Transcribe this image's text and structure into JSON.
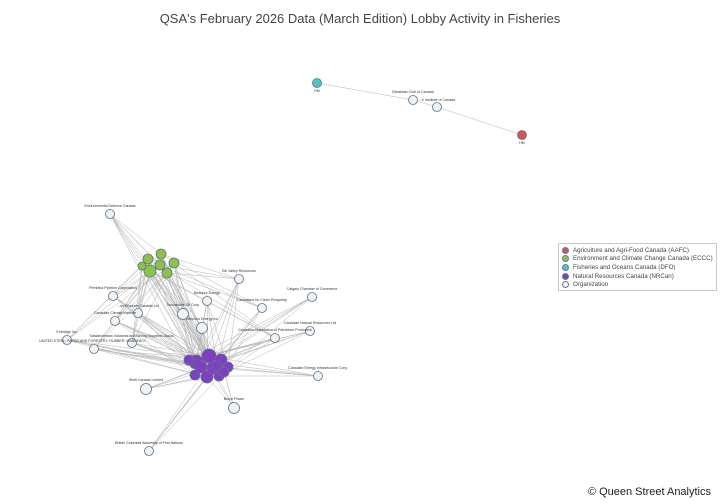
{
  "title": "QSA's February 2026 Data (March Edition) Lobby Activity in Fisheries",
  "credit": "© Queen Street Analytics",
  "colors": {
    "AAFC": "#d9534f",
    "ECCC": "#8bc34a",
    "DFO": "#4ec3c9",
    "NRCan": "#7e3fc4",
    "Organization": "#eef3f8",
    "stroke": "#5f7180",
    "edge": "#b5b5b5"
  },
  "legend": [
    {
      "key": "AAFC",
      "label": "Agriculture and Agri-Food Canada (AAFC)"
    },
    {
      "key": "ECCC",
      "label": "Environment and Climate Change Canada (ECCC)"
    },
    {
      "key": "DFO",
      "label": "Fisheries and Oceans Canada (DFO)"
    },
    {
      "key": "NRCan",
      "label": "Natural Resources Canada (NRCan)"
    },
    {
      "key": "Organization",
      "label": "Organization"
    }
  ],
  "nodes": [
    {
      "id": "dfo",
      "type": "DFO",
      "label": "HM"
    },
    {
      "id": "bcc",
      "type": "Organization",
      "label": "Breakfast Club of Canada"
    },
    {
      "id": "inst",
      "type": "Organization",
      "label": "...e Institute of Canada"
    },
    {
      "id": "aafc",
      "type": "AAFC",
      "label": "HM"
    },
    {
      "id": "edc",
      "type": "Organization",
      "label": "Environmental Defence Canada"
    },
    {
      "id": "elk",
      "type": "Organization",
      "label": "Elk Valley Resources"
    },
    {
      "id": "pembina",
      "type": "Organization",
      "label": "Pembina Pipeline Corporation"
    },
    {
      "id": "calgary",
      "type": "Organization",
      "label": "Calgary Chamber of Commerce"
    },
    {
      "id": "enbridge_gas",
      "type": "Organization",
      "label": "Beaupré Energy"
    },
    {
      "id": "forest",
      "type": "Organization",
      "label": "...ss Products Canada Ltd"
    },
    {
      "id": "touchstone",
      "type": "Organization",
      "label": "Touchstone Oil Corp."
    },
    {
      "id": "clean",
      "type": "Organization",
      "label": "Canadians for Clean Prosperity"
    },
    {
      "id": "cci",
      "type": "Organization",
      "label": "Canadian Climate Institute"
    },
    {
      "id": "cenovus",
      "type": "Organization",
      "label": "Cenovus Energy Inc"
    },
    {
      "id": "cnrl",
      "type": "Organization",
      "label": "Canadian Natural Resources Ltd"
    },
    {
      "id": "enbridge",
      "type": "Organization",
      "label": "Enbridge Inc."
    },
    {
      "id": "sima",
      "type": "Organization",
      "label": "Saskatchewan Industrial and Mining Suppliers Assoc."
    },
    {
      "id": "steel",
      "type": "Organization",
      "label": "UNITED STEEL, PAPER AND FORESTRY, RUBBER, MANUFACT..."
    },
    {
      "id": "capp",
      "type": "Organization",
      "label": "Canadian Association of Petroleum Producers"
    },
    {
      "id": "cepa",
      "type": "Organization",
      "label": "Canadian Energy Infrastructure Corp."
    },
    {
      "id": "shell",
      "type": "Organization",
      "label": "Shell Canada Limited"
    },
    {
      "id": "bruce",
      "type": "Organization",
      "label": "Bruce Power"
    },
    {
      "id": "bcafn",
      "type": "Organization",
      "label": "British Columbia Assembly of First Nations"
    }
  ]
}
